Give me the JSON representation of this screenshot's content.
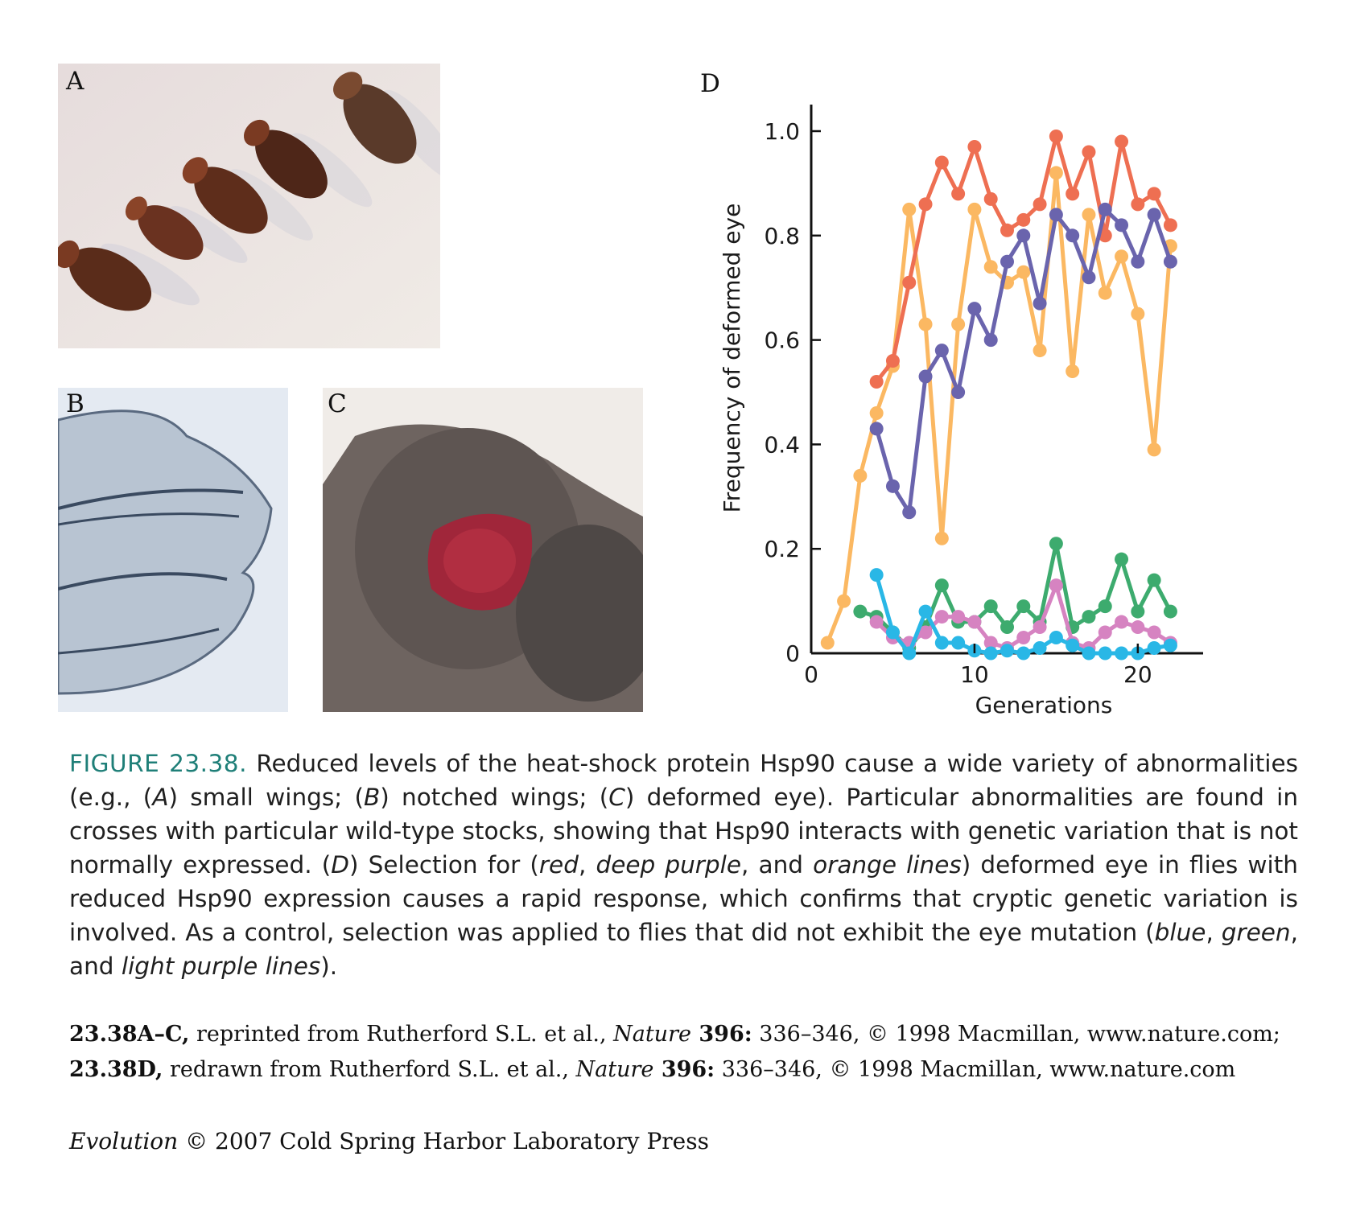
{
  "panels": {
    "a": {
      "letter": "A"
    },
    "b": {
      "letter": "B"
    },
    "c": {
      "letter": "C"
    },
    "d": {
      "letter": "D"
    }
  },
  "colors": {
    "red": "#ee6f52",
    "orange": "#fbb862",
    "deep_purple": "#6a64ad",
    "blue": "#29b7e6",
    "green": "#3dab6e",
    "light_purple": "#d683c1"
  },
  "chart_data": {
    "type": "line",
    "xlabel": "Generations",
    "ylabel": "Frequency of deformed eye",
    "xlim": [
      0,
      24
    ],
    "ylim": [
      0,
      1.0
    ],
    "xticks": [
      0,
      10,
      20
    ],
    "xtick_labels": [
      "0",
      "10",
      "20"
    ],
    "yticks": [
      0,
      0.2,
      0.4,
      0.6,
      0.8,
      1.0
    ],
    "ytick_labels": [
      "0",
      "0.2",
      "0.4",
      "0.6",
      "0.8",
      "1.0"
    ],
    "grid": false,
    "series": [
      {
        "color_key": "orange",
        "x": [
          1,
          2,
          3,
          4,
          5,
          6,
          7,
          8,
          9,
          10,
          11,
          12,
          13,
          14,
          15,
          16,
          17,
          18,
          19,
          20,
          21,
          22
        ],
        "values": [
          0.02,
          0.1,
          0.34,
          0.46,
          0.55,
          0.85,
          0.63,
          0.22,
          0.63,
          0.85,
          0.74,
          0.71,
          0.73,
          0.58,
          0.92,
          0.54,
          0.84,
          0.69,
          0.76,
          0.65,
          0.39,
          0.78
        ]
      },
      {
        "color_key": "red",
        "x": [
          4,
          5,
          6,
          7,
          8,
          9,
          10,
          11,
          12,
          13,
          14,
          15,
          16,
          17,
          18,
          19,
          20,
          21,
          22
        ],
        "values": [
          0.52,
          0.56,
          0.71,
          0.86,
          0.94,
          0.88,
          0.97,
          0.87,
          0.81,
          0.83,
          0.86,
          0.99,
          0.88,
          0.96,
          0.8,
          0.98,
          0.86,
          0.88,
          0.82
        ]
      },
      {
        "color_key": "deep_purple",
        "x": [
          4,
          5,
          6,
          7,
          8,
          9,
          10,
          11,
          12,
          13,
          14,
          15,
          16,
          17,
          18,
          19,
          20,
          21,
          22
        ],
        "values": [
          0.43,
          0.32,
          0.27,
          0.53,
          0.58,
          0.5,
          0.66,
          0.6,
          0.75,
          0.8,
          0.67,
          0.84,
          0.8,
          0.72,
          0.85,
          0.82,
          0.75,
          0.84,
          0.75
        ]
      },
      {
        "color_key": "green",
        "x": [
          3,
          4,
          5,
          6,
          7,
          8,
          9,
          10,
          11,
          12,
          13,
          14,
          15,
          16,
          17,
          18,
          19,
          20,
          21,
          22
        ],
        "values": [
          0.08,
          0.07,
          0.04,
          0.01,
          0.05,
          0.13,
          0.06,
          0.06,
          0.09,
          0.05,
          0.09,
          0.06,
          0.21,
          0.05,
          0.07,
          0.09,
          0.18,
          0.08,
          0.14,
          0.08
        ]
      },
      {
        "color_key": "light_purple",
        "x": [
          4,
          5,
          6,
          7,
          8,
          9,
          10,
          11,
          12,
          13,
          14,
          15,
          16,
          17,
          18,
          19,
          20,
          21,
          22
        ],
        "values": [
          0.06,
          0.03,
          0.02,
          0.04,
          0.07,
          0.07,
          0.06,
          0.02,
          0.01,
          0.03,
          0.05,
          0.13,
          0.02,
          0.01,
          0.04,
          0.06,
          0.05,
          0.04,
          0.02
        ]
      },
      {
        "color_key": "blue",
        "x": [
          4,
          5,
          6,
          7,
          8,
          9,
          10,
          11,
          12,
          13,
          14,
          15,
          16,
          17,
          18,
          19,
          20,
          21,
          22
        ],
        "values": [
          0.15,
          0.04,
          0.0,
          0.08,
          0.02,
          0.02,
          0.005,
          0.0,
          0.005,
          0.0,
          0.01,
          0.03,
          0.015,
          0.0,
          0.0,
          0.0,
          0.0,
          0.01,
          0.015
        ]
      }
    ]
  },
  "caption": {
    "figure_label": "FIGURE 23.38.",
    "t1": " Reduced levels of the heat-shock protein Hsp90 cause a wide variety of abnormalities (e.g., (",
    "i_a": "A",
    "t2": ") small wings; (",
    "i_b": "B",
    "t3": ") notched wings; (",
    "i_c": "C",
    "t4": ") deformed eye). Particular abnormalities are found in crosses with particular wild-type stocks, showing that Hsp90 interacts with genetic variation that is not normally expressed. (",
    "i_d": "D",
    "t5": ") Selection for (",
    "i_red": "red",
    "t6": ", ",
    "i_deep_purple": "deep purple",
    "t7": ", and ",
    "i_orange": "orange lines",
    "t8": ") deformed eye in flies with reduced Hsp90 expression causes a rapid response, which confirms that cryptic genetic variation is involved. As a control, selection was applied to flies that did not exhibit the eye mutation (",
    "i_blue": "blue",
    "t9": ", ",
    "i_green": "green",
    "t10": ", and ",
    "i_light_purple": "light purple lines",
    "t11": ")."
  },
  "credits": {
    "line1": {
      "b1": "23.38A–C,",
      "t1": " reprinted from Rutherford S.L. et al., ",
      "i1": "Nature",
      "b2": " 396:",
      "t2": " 336–346, © 1998 Macmillan, www.nature.com;"
    },
    "line2": {
      "b1": "23.38D,",
      "t1": " redrawn from Rutherford S.L. et al., ",
      "i1": "Nature",
      "b2": " 396:",
      "t2": " 336–346, © 1998 Macmillan, www.nature.com"
    }
  },
  "publisher": {
    "i1": "Evolution",
    "t1": " © 2007 Cold Spring Harbor Laboratory Press"
  }
}
